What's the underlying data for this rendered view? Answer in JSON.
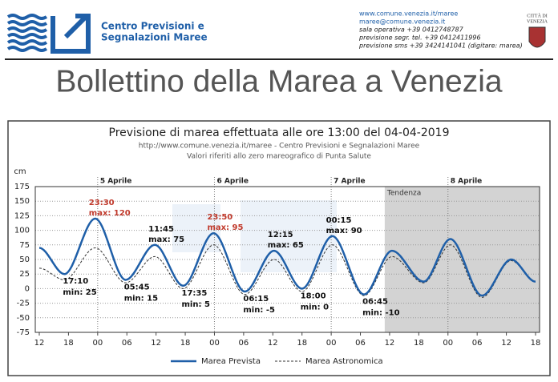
{
  "header": {
    "org_lines": [
      "Centro Previsioni e",
      "Segnalazioni Maree"
    ],
    "contacts": [
      "www.comune.venezia.it/maree",
      "maree@comune.venezia.it",
      "sala operativa +39 0412748787",
      "previsione segr. tel. +39 0412411996",
      "previsione sms +39 3424141041 (digitare: marea)"
    ],
    "city": [
      "CITTÀ DI",
      "VENEZIA"
    ]
  },
  "title": "Bollettino della Marea a Venezia",
  "chart_data": {
    "type": "line",
    "title": "Previsione di marea effettuata alle ore 13:00 del 04-04-2019",
    "subtitle": [
      "http://www.comune.venezia.it/maree - Centro Previsioni e Segnalazioni Maree",
      "Valori riferiti allo zero mareografico di Punta Salute"
    ],
    "y_label": "cm",
    "x": [
      0,
      5.17,
      11.5,
      17.75,
      23.75,
      29.58,
      35.83,
      42.25,
      48.25,
      54,
      60.25,
      66.75,
      72.5,
      79,
      84.5,
      91,
      97,
      102
    ],
    "series": [
      {
        "name": "Marea Prevista",
        "color": "#1f5fa8",
        "dash": false,
        "values": [
          70,
          25,
          120,
          15,
          75,
          5,
          95,
          -5,
          65,
          0,
          90,
          -10,
          65,
          12,
          85,
          -12,
          50,
          12
        ]
      },
      {
        "name": "Marea Astronomica",
        "color": "#333333",
        "dash": true,
        "values": [
          35,
          15,
          70,
          10,
          55,
          0,
          75,
          -10,
          50,
          -5,
          75,
          -12,
          55,
          10,
          75,
          -15,
          48,
          12
        ]
      }
    ],
    "annotations": [
      {
        "time": "17:10",
        "label": "min: 25",
        "color": "#111111"
      },
      {
        "time": "23:30",
        "label": "max: 120",
        "color": "#c0392b"
      },
      {
        "time": "05:45",
        "label": "min: 15",
        "color": "#111111"
      },
      {
        "time": "11:45",
        "label": "max: 75",
        "color": "#111111"
      },
      {
        "time": "17:35",
        "label": "min: 5",
        "color": "#111111"
      },
      {
        "time": "23:50",
        "label": "max: 95",
        "color": "#c0392b"
      },
      {
        "time": "06:15",
        "label": "min: -5",
        "color": "#111111"
      },
      {
        "time": "12:15",
        "label": "max: 65",
        "color": "#111111"
      },
      {
        "time": "18:00",
        "label": "min: 0",
        "color": "#111111"
      },
      {
        "time": "00:15",
        "label": "max: 90",
        "color": "#111111"
      },
      {
        "time": "06:45",
        "label": "min: -10",
        "color": "#111111"
      }
    ],
    "day_labels": [
      {
        "x": 12,
        "label": "5 Aprile"
      },
      {
        "x": 36,
        "label": "6 Aprile"
      },
      {
        "x": 60,
        "label": "7 Aprile"
      },
      {
        "x": 84,
        "label": "8 Aprile"
      }
    ],
    "tendenza": {
      "from": 71,
      "label": "Tendenza"
    },
    "xlim": [
      0,
      102
    ],
    "xticks": [
      {
        "value": 0,
        "label": "12"
      },
      {
        "value": 6,
        "label": "18"
      },
      {
        "value": 12,
        "label": "00"
      },
      {
        "value": 18,
        "label": "06"
      },
      {
        "value": 24,
        "label": "12"
      },
      {
        "value": 30,
        "label": "18"
      },
      {
        "value": 36,
        "label": "00"
      },
      {
        "value": 42,
        "label": "06"
      },
      {
        "value": 48,
        "label": "12"
      },
      {
        "value": 54,
        "label": "18"
      },
      {
        "value": 60,
        "label": "00"
      },
      {
        "value": 66,
        "label": "06"
      },
      {
        "value": 72,
        "label": "12"
      },
      {
        "value": 78,
        "label": "18"
      },
      {
        "value": 84,
        "label": "00"
      },
      {
        "value": 90,
        "label": "06"
      },
      {
        "value": 96,
        "label": "12"
      },
      {
        "value": 102,
        "label": "18"
      }
    ],
    "ylim": [
      -75,
      175
    ],
    "yticks": [
      175,
      150,
      125,
      100,
      75,
      50,
      25,
      0,
      -25,
      -50,
      -75
    ],
    "grid": true
  }
}
